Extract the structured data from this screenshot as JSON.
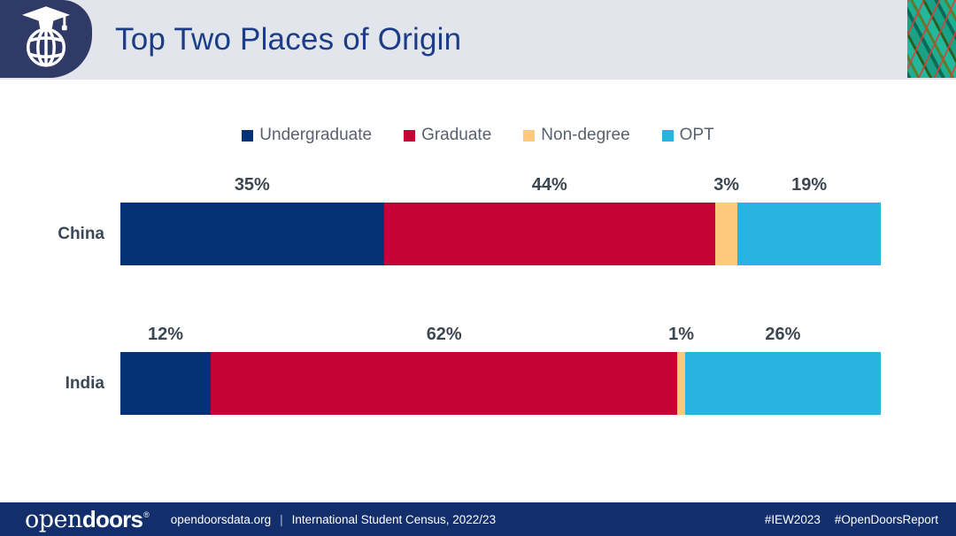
{
  "header": {
    "title": "Top Two Places of Origin"
  },
  "chart_data": {
    "type": "bar",
    "orientation": "horizontal-stacked",
    "title": "Top Two Places of Origin",
    "categories": [
      "China",
      "India"
    ],
    "series": [
      {
        "name": "Undergraduate",
        "color": "#053274",
        "values": [
          35,
          12
        ]
      },
      {
        "name": "Graduate",
        "color": "#C40233",
        "values": [
          44,
          62
        ]
      },
      {
        "name": "Non-degree",
        "color": "#FCC97D",
        "values": [
          3,
          1
        ]
      },
      {
        "name": "OPT",
        "color": "#29B3E1",
        "values": [
          19,
          26
        ]
      }
    ],
    "value_suffix": "%",
    "legend_position": "top",
    "grid": false,
    "xlabel": "",
    "ylabel": ""
  },
  "footer": {
    "logo_open": "open",
    "logo_doors": "doors",
    "registered_mark": "®",
    "site": "opendoorsdata.org",
    "separator": "|",
    "source": "International Student Census, 2022/23",
    "hashtags": [
      "#IEW2023",
      "#OpenDoorsReport"
    ]
  },
  "colors": {
    "header_bg": "#E2E5EB",
    "badge_bg": "#2F3A66",
    "title_text": "#1B3C87",
    "footer_bg": "#132F6B",
    "value_label_text": "#3D4751",
    "legend_text": "#59616E"
  },
  "icons": {
    "badge": "globe-graduation-cap-icon",
    "corner": "decorative-feather-art"
  }
}
